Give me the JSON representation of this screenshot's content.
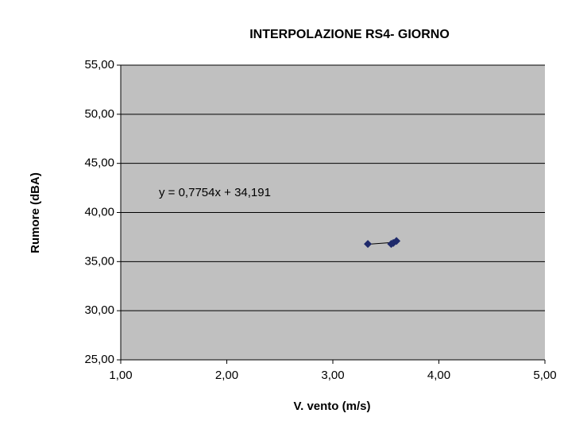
{
  "chart_data": {
    "type": "scatter",
    "title": "INTERPOLAZIONE RS4- GIORNO",
    "xlabel": "V. vento (m/s)",
    "ylabel": "Rumore (dBA)",
    "annotation": "y = 0,7754x + 34,191",
    "xlim": [
      1,
      5
    ],
    "ylim": [
      25,
      55
    ],
    "xticks": [
      {
        "value": 1,
        "label": "1,00"
      },
      {
        "value": 2,
        "label": "2,00"
      },
      {
        "value": 3,
        "label": "3,00"
      },
      {
        "value": 4,
        "label": "4,00"
      },
      {
        "value": 5,
        "label": "5,00"
      }
    ],
    "yticks": [
      {
        "value": 25,
        "label": "25,00"
      },
      {
        "value": 30,
        "label": "30,00"
      },
      {
        "value": 35,
        "label": "35,00"
      },
      {
        "value": 40,
        "label": "40,00"
      },
      {
        "value": 45,
        "label": "45,00"
      },
      {
        "value": 50,
        "label": "50,00"
      },
      {
        "value": 55,
        "label": "55,00"
      }
    ],
    "grid": true,
    "color": "#1f2a6b",
    "x": [
      3.33,
      3.55,
      3.57,
      3.6
    ],
    "values": [
      36.8,
      36.8,
      36.9,
      37.1
    ],
    "trendline": {
      "x": [
        3.33,
        3.6
      ],
      "values": [
        36.77,
        36.98
      ]
    }
  }
}
